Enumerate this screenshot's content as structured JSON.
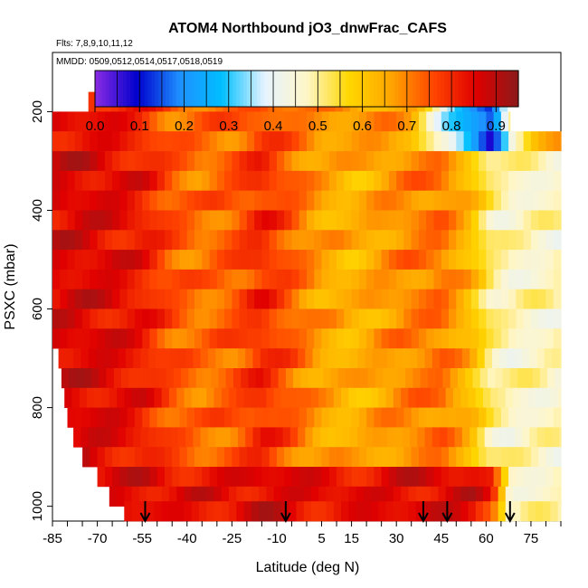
{
  "chart_data": {
    "type": "heatmap",
    "title": "ATOM4 Northbound jO3_dnwFrac_CAFS",
    "subtitle_flights": "Flts: 7,8,9,10,11,12",
    "subtitle_dates": "MMDD: 0509,0512,0514,0517,0518,0519",
    "xlabel": "Latitude (deg N)",
    "ylabel": "PSXC (mbar)",
    "x_ticks": [
      -85,
      -70,
      -55,
      -40,
      -25,
      -10,
      5,
      15,
      30,
      45,
      60,
      75
    ],
    "x_tick_labels": [
      "-85",
      "-70",
      "-55",
      "-40",
      "-25",
      "-10",
      "5",
      "15",
      "30",
      "45",
      "60",
      "75"
    ],
    "y_ticks": [
      200,
      400,
      600,
      800,
      1000
    ],
    "y_tick_labels": [
      "200",
      "400",
      "600",
      "800",
      "1000"
    ],
    "xlim": [
      -85,
      85
    ],
    "ylim": [
      1030,
      80
    ],
    "colorbar": {
      "min": 0.0,
      "max": 0.95,
      "ticks": [
        0.0,
        0.1,
        0.2,
        0.3,
        0.4,
        0.5,
        0.6,
        0.7,
        0.8,
        0.9
      ],
      "tick_labels": [
        "0.0",
        "0.1",
        "0.2",
        "0.3",
        "0.4",
        "0.5",
        "0.6",
        "0.7",
        "0.8",
        "0.9"
      ],
      "colors": [
        "#8a2be2",
        "#0000cd",
        "#1e90ff",
        "#00bfff",
        "#e6f3ff",
        "#fff6c8",
        "#ffd700",
        "#ffa500",
        "#ff4500",
        "#e00000",
        "#8b1a1a"
      ]
    },
    "arrow_latitudes": [
      -54,
      -7,
      39,
      47,
      68
    ],
    "row_pressures": [
      180,
      220,
      260,
      300,
      340,
      380,
      420,
      460,
      500,
      540,
      580,
      620,
      660,
      700,
      740,
      780,
      820,
      860,
      900,
      940,
      980,
      1010
    ],
    "row_lat_start": [
      -73,
      -85,
      -85,
      -85,
      -85,
      -85,
      -85,
      -85,
      -85,
      -85,
      -85,
      -85,
      -85,
      -83,
      -82,
      -81,
      -80,
      -78,
      -75,
      -70,
      -66,
      -61
    ],
    "row_lat_end": [
      67,
      68,
      85,
      85,
      85,
      85,
      85,
      85,
      85,
      85,
      85,
      85,
      85,
      85,
      85,
      85,
      85,
      85,
      85,
      85,
      85,
      85
    ],
    "profile_lat": [
      -85,
      -75,
      -65,
      -55,
      -45,
      -35,
      -25,
      -15,
      -5,
      5,
      15,
      25,
      35,
      45,
      55,
      62,
      68,
      75,
      85
    ],
    "profile_values": [
      0.86,
      0.86,
      0.85,
      0.82,
      0.75,
      0.71,
      0.74,
      0.8,
      0.74,
      0.66,
      0.63,
      0.67,
      0.7,
      0.72,
      0.62,
      0.5,
      0.47,
      0.47,
      0.47
    ],
    "upper_values": [
      0.85,
      0.84,
      0.83,
      0.8,
      0.73,
      0.72,
      0.73,
      0.77,
      0.72,
      0.68,
      0.68,
      0.68,
      0.65,
      0.42,
      0.22,
      0.1,
      0.48,
      0.6,
      0.65
    ],
    "near_surface_values": [
      0.85,
      0.85,
      0.85,
      0.85,
      0.84,
      0.84,
      0.84,
      0.86,
      0.85,
      0.84,
      0.84,
      0.84,
      0.85,
      0.86,
      0.86,
      0.8,
      0.47,
      0.47,
      0.47
    ]
  }
}
